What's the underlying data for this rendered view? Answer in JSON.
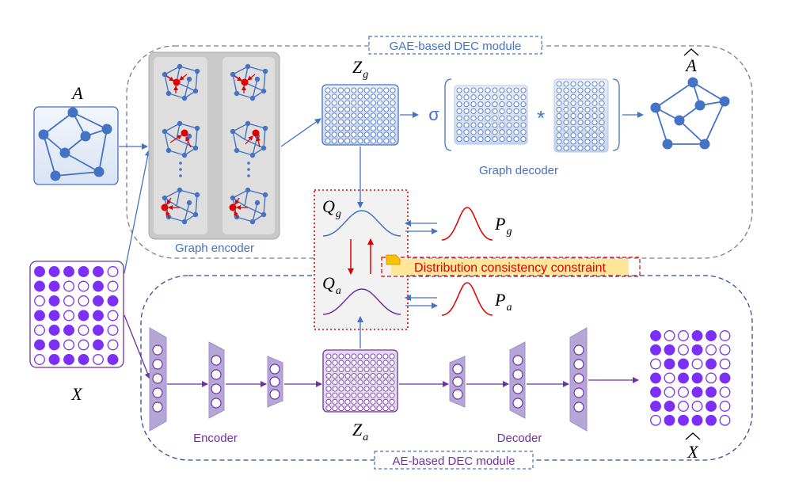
{
  "modules": {
    "gae_title": "GAE-based DEC module",
    "ae_title": "AE-based DEC module"
  },
  "labels": {
    "graph_encoder": "Graph encoder",
    "graph_decoder": "Graph decoder",
    "encoder": "Encoder",
    "decoder": "Decoder",
    "constraint": "Distribution consistency constraint",
    "sigma": "σ",
    "star": "*"
  },
  "symbols": {
    "A": "A",
    "A_hat": "A",
    "X": "X",
    "X_hat": "X",
    "Z": "Z",
    "Q": "Q",
    "P": "P",
    "sub_g": "g",
    "sub_a": "a"
  },
  "colors": {
    "blue": "#4472c4",
    "node_blue": "#4472c4",
    "purple": "#7030a0",
    "violet": "#7b2ff7",
    "red": "#e00000",
    "constraint_bg": "#ffe699",
    "dashed": "#7f7f7f"
  },
  "matrix_X": [
    [
      1,
      1,
      1,
      1,
      1,
      0
    ],
    [
      1,
      1,
      0,
      0,
      1,
      0
    ],
    [
      0,
      1,
      0,
      0,
      1,
      1
    ],
    [
      1,
      1,
      0,
      1,
      1,
      0
    ],
    [
      0,
      1,
      1,
      0,
      1,
      0
    ],
    [
      1,
      1,
      0,
      0,
      1,
      0
    ],
    [
      0,
      1,
      1,
      1,
      0,
      1
    ]
  ],
  "matrix_Xhat": [
    [
      1,
      0,
      0,
      1,
      1,
      0
    ],
    [
      1,
      1,
      0,
      1,
      0,
      0
    ],
    [
      0,
      1,
      1,
      0,
      1,
      0
    ],
    [
      1,
      0,
      1,
      1,
      0,
      1
    ],
    [
      1,
      0,
      0,
      1,
      1,
      0
    ],
    [
      1,
      1,
      0,
      0,
      1,
      0
    ],
    [
      0,
      1,
      1,
      1,
      1,
      0
    ]
  ]
}
